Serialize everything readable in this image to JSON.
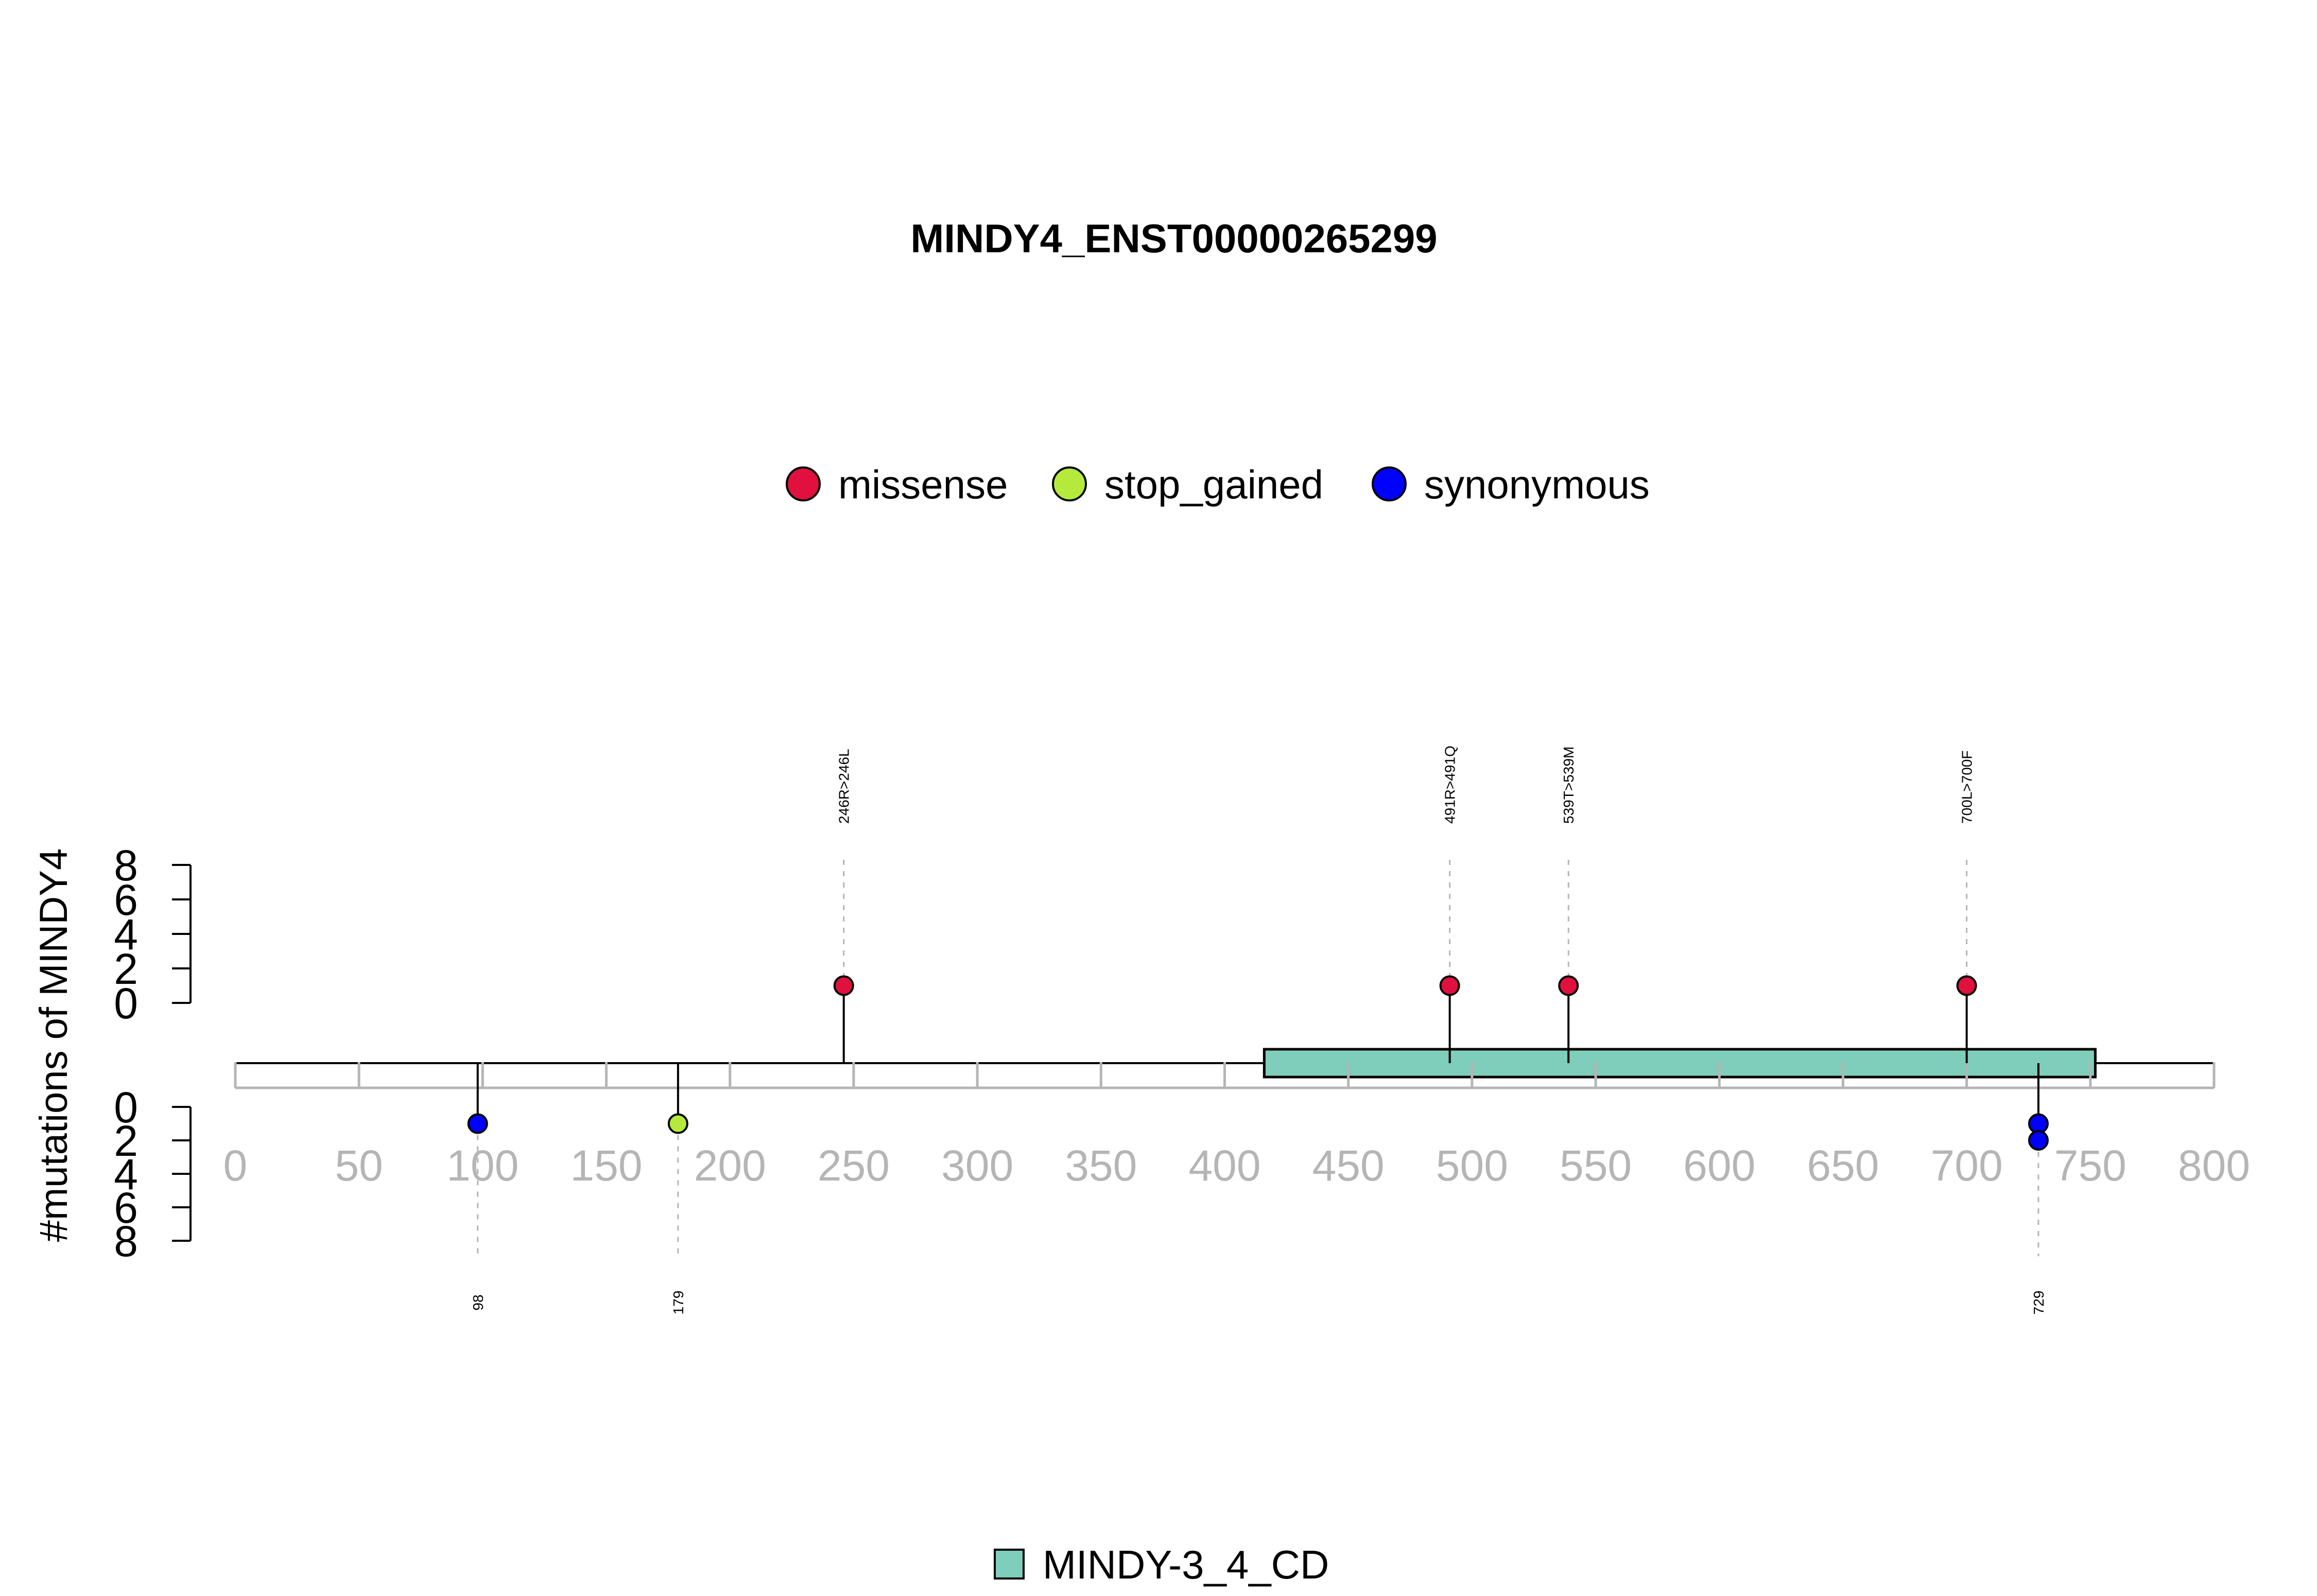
{
  "chart_data": {
    "type": "lollipop",
    "title": "MINDY4_ENST00000265299",
    "ylabel": "#mutations of MINDY4",
    "xlim": [
      0,
      800
    ],
    "x_ticks": [
      0,
      50,
      100,
      150,
      200,
      250,
      300,
      350,
      400,
      450,
      500,
      550,
      600,
      650,
      700,
      750,
      800
    ],
    "y_ticks_upper": [
      0,
      2,
      4,
      6,
      8
    ],
    "y_ticks_lower": [
      0,
      2,
      4,
      6,
      8
    ],
    "ylim": [
      0,
      8
    ],
    "legend": [
      {
        "label": "missense",
        "color": "#e0103f"
      },
      {
        "label": "stop_gained",
        "color": "#b5ea3c"
      },
      {
        "label": "synonymous",
        "color": "#0000ff"
      }
    ],
    "mutations_upper": [
      {
        "position": 246,
        "count": 1,
        "type": "missense",
        "label": "246R>246L"
      },
      {
        "position": 491,
        "count": 1,
        "type": "missense",
        "label": "491R>491Q"
      },
      {
        "position": 539,
        "count": 1,
        "type": "missense",
        "label": "539T>539M"
      },
      {
        "position": 700,
        "count": 1,
        "type": "missense",
        "label": "700L>700F"
      }
    ],
    "mutations_lower": [
      {
        "position": 98,
        "count": 1,
        "type": "synonymous",
        "label": "98"
      },
      {
        "position": 179,
        "count": 1,
        "type": "stop_gained",
        "label": "179"
      },
      {
        "position": 729,
        "count": 2,
        "type": "synonymous",
        "label": "729"
      }
    ],
    "domains": [
      {
        "name": "MINDY-3_4_CD",
        "start": 416,
        "end": 752,
        "color": "#7fcdbb"
      }
    ]
  }
}
